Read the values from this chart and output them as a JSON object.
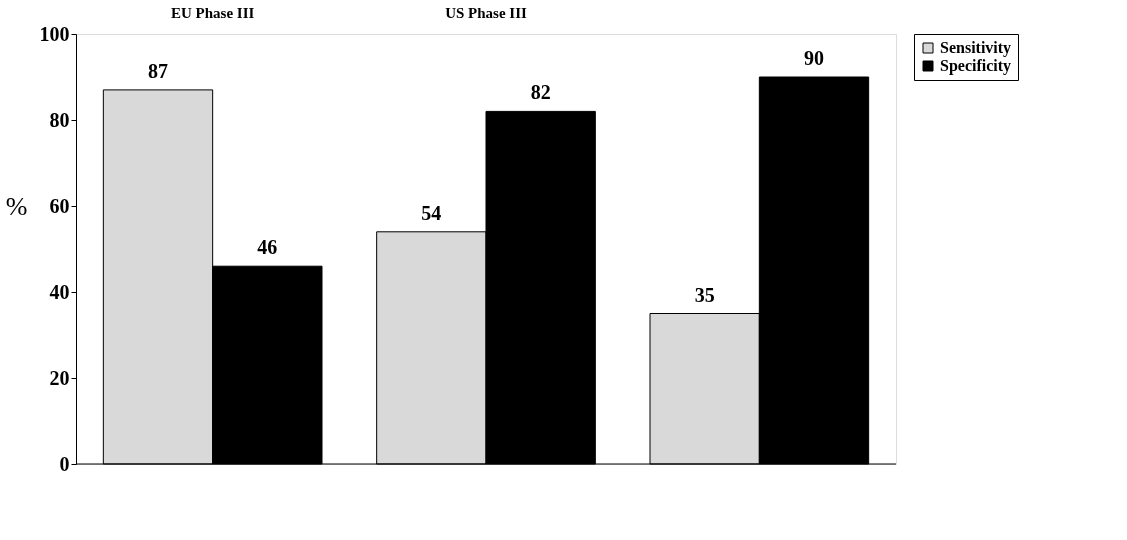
{
  "chart_data": {
    "type": "bar",
    "ylabel": "%",
    "categories": [
      "EU Phase III",
      "US Phase III",
      null
    ],
    "series": [
      {
        "name": "Sensitivity",
        "color": "#d9d9d9",
        "values": [
          87,
          54,
          35
        ]
      },
      {
        "name": "Specificity",
        "color": "#000000",
        "values": [
          46,
          82,
          90
        ]
      }
    ],
    "ylim": [
      0,
      100
    ],
    "yticks": [
      0,
      20,
      40,
      60,
      80,
      100
    ],
    "data_labels": true,
    "legend": "right",
    "grid": false
  }
}
